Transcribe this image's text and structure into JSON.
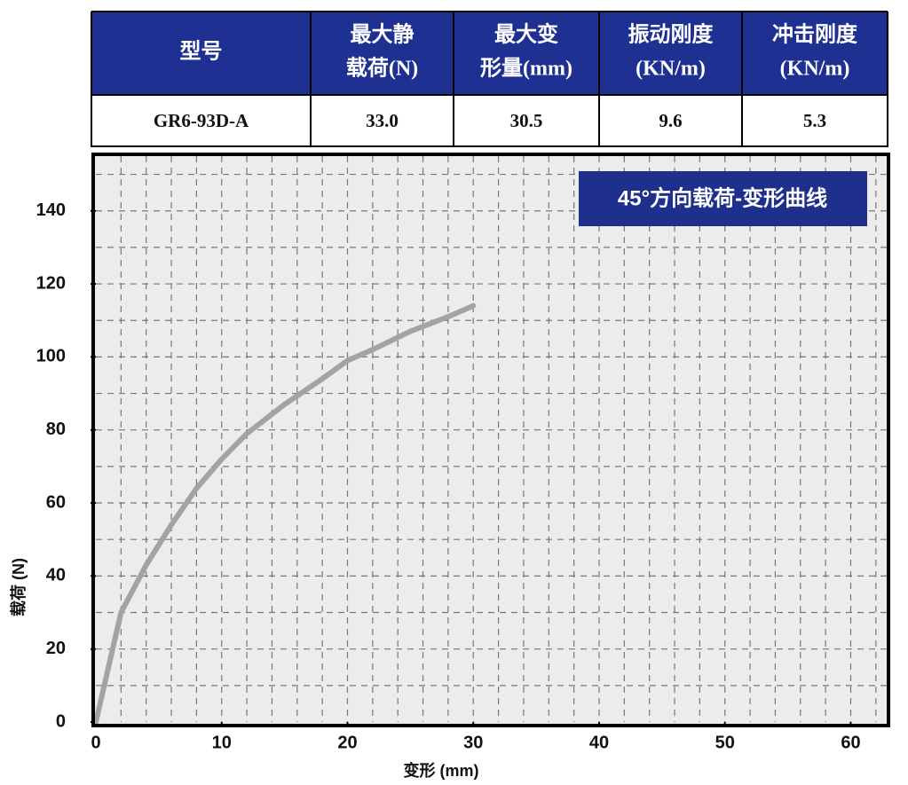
{
  "table": {
    "header": [
      [
        "型号"
      ],
      [
        "最大静",
        "载荷(N)"
      ],
      [
        "最大变",
        "形量(mm)"
      ],
      [
        "振动刚度",
        "(KN/m)"
      ],
      [
        "冲击刚度",
        "(KN/m)"
      ]
    ],
    "rows": [
      [
        "GR6-93D-A",
        "33.0",
        "30.5",
        "9.6",
        "5.3"
      ]
    ]
  },
  "chart_data": {
    "type": "line",
    "title": "45°方向载荷-变形曲线",
    "x_label": "变形 (mm)",
    "y_label": "载荷 (N)",
    "x": [
      0,
      1,
      2,
      4,
      6,
      8,
      10,
      12,
      15,
      18,
      20,
      22,
      25,
      28,
      30
    ],
    "series": [
      {
        "color": "#a3a3a3",
        "values": [
          0,
          15,
          30,
          43,
          54,
          64,
          72,
          79,
          87,
          94,
          99,
          102,
          107,
          111,
          114
        ]
      }
    ],
    "xlim": [
      0,
      63
    ],
    "ylim": [
      0,
      155
    ],
    "xticks": [
      0,
      10,
      20,
      30,
      40,
      50,
      60
    ],
    "yticks": [
      0,
      20,
      40,
      60,
      80,
      100,
      120,
      140
    ],
    "grid": true
  }
}
